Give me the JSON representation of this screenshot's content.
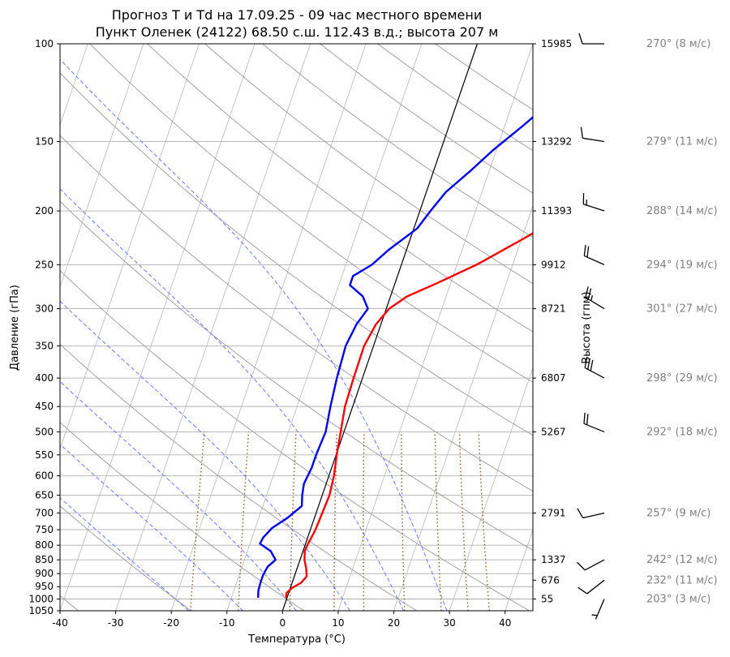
{
  "chart_data": {
    "type": "skew-t",
    "title_line1": "Прогноз T и Td на 17.09.25 - 09 час местного времени",
    "title_line2": "Пункт Оленек (24122) 68.50 с.ш. 112.43 в.д.; высота 207 м",
    "xlabel": "Температура (°C)",
    "ylabel": "Давление (гПа)",
    "ylabel_right": "Высота (гпм)",
    "xlim": [
      -40,
      45
    ],
    "pressure_range": [
      1050,
      100
    ],
    "x_ticks": [
      "-40",
      "-30",
      "-20",
      "-10",
      "0",
      "10",
      "20",
      "30",
      "40"
    ],
    "pressure_ticks": [
      "100",
      "150",
      "200",
      "250",
      "300",
      "350",
      "400",
      "450",
      "500",
      "550",
      "600",
      "650",
      "700",
      "750",
      "800",
      "850",
      "900",
      "950",
      "1000",
      "1050"
    ],
    "heights": [
      {
        "p": 100,
        "label": "15985"
      },
      {
        "p": 150,
        "label": "13292"
      },
      {
        "p": 200,
        "label": "11393"
      },
      {
        "p": 250,
        "label": "9912"
      },
      {
        "p": 300,
        "label": "8721"
      },
      {
        "p": 400,
        "label": "6807"
      },
      {
        "p": 500,
        "label": "5267"
      },
      {
        "p": 700,
        "label": "2791"
      },
      {
        "p": 850,
        "label": "1337"
      },
      {
        "p": 925,
        "label": "676"
      },
      {
        "p": 1000,
        "label": "55"
      }
    ],
    "grid": true,
    "colors": {
      "temperature": "#ff0000",
      "dewpoint": "#0000ee",
      "dry_adiabat": "#999999",
      "moist_adiabat": "#6c7bf2",
      "mixing_ratio": "#8b5a2b",
      "zero_isotherm": "#000000",
      "wind_text": "#808080"
    },
    "series": [
      {
        "kind": "temperature",
        "points": [
          {
            "p": 995,
            "t": -0.2
          },
          {
            "p": 975,
            "t": -0.4
          },
          {
            "p": 955,
            "t": 0.3
          },
          {
            "p": 935,
            "t": 1.6
          },
          {
            "p": 910,
            "t": 2.2
          },
          {
            "p": 880,
            "t": 1.6
          },
          {
            "p": 850,
            "t": 0.8
          },
          {
            "p": 820,
            "t": 0.3
          },
          {
            "p": 800,
            "t": 0.4
          },
          {
            "p": 750,
            "t": 0.9
          },
          {
            "p": 700,
            "t": 1.1
          },
          {
            "p": 650,
            "t": 1.3
          },
          {
            "p": 600,
            "t": 0.9
          },
          {
            "p": 550,
            "t": 0.1
          },
          {
            "p": 500,
            "t": -0.6
          },
          {
            "p": 450,
            "t": -1.4
          },
          {
            "p": 400,
            "t": -1.6
          },
          {
            "p": 350,
            "t": -1.7
          },
          {
            "p": 320,
            "t": -0.9
          },
          {
            "p": 300,
            "t": 0.5
          },
          {
            "p": 285,
            "t": 3.0
          },
          {
            "p": 270,
            "t": 7.5
          },
          {
            "p": 250,
            "t": 13.5
          },
          {
            "p": 230,
            "t": 18.8
          },
          {
            "p": 210,
            "t": 24.4
          },
          {
            "p": 195,
            "t": 28.2
          },
          {
            "p": 180,
            "t": 30.4
          },
          {
            "p": 160,
            "t": 34.7
          },
          {
            "p": 145,
            "t": 39.8
          },
          {
            "p": 130,
            "t": 43.7
          },
          {
            "p": 120,
            "t": 45.0
          }
        ]
      },
      {
        "kind": "dewpoint",
        "points": [
          {
            "p": 995,
            "t": -5.2
          },
          {
            "p": 965,
            "t": -5.6
          },
          {
            "p": 935,
            "t": -5.7
          },
          {
            "p": 905,
            "t": -5.7
          },
          {
            "p": 875,
            "t": -5.4
          },
          {
            "p": 850,
            "t": -4.4
          },
          {
            "p": 820,
            "t": -5.8
          },
          {
            "p": 795,
            "t": -8.2
          },
          {
            "p": 775,
            "t": -8.0
          },
          {
            "p": 745,
            "t": -7.0
          },
          {
            "p": 715,
            "t": -4.9
          },
          {
            "p": 680,
            "t": -3.0
          },
          {
            "p": 650,
            "t": -3.6
          },
          {
            "p": 620,
            "t": -4.0
          },
          {
            "p": 580,
            "t": -3.6
          },
          {
            "p": 550,
            "t": -3.6
          },
          {
            "p": 500,
            "t": -3.3
          },
          {
            "p": 450,
            "t": -4.0
          },
          {
            "p": 400,
            "t": -4.6
          },
          {
            "p": 350,
            "t": -5.0
          },
          {
            "p": 320,
            "t": -4.4
          },
          {
            "p": 300,
            "t": -3.3
          },
          {
            "p": 285,
            "t": -5.0
          },
          {
            "p": 272,
            "t": -8.0
          },
          {
            "p": 262,
            "t": -8.0
          },
          {
            "p": 250,
            "t": -5.3
          },
          {
            "p": 235,
            "t": -3.2
          },
          {
            "p": 215,
            "t": 0.6
          },
          {
            "p": 200,
            "t": 1.9
          },
          {
            "p": 185,
            "t": 3.5
          },
          {
            "p": 170,
            "t": 6.5
          },
          {
            "p": 155,
            "t": 9.5
          },
          {
            "p": 140,
            "t": 13.4
          },
          {
            "p": 125,
            "t": 17.4
          },
          {
            "p": 110,
            "t": 20.6
          },
          {
            "p": 100,
            "t": 22.7
          }
        ]
      }
    ],
    "wind": [
      {
        "p": 100,
        "dir": 270,
        "speed": 8,
        "label": "270° (8 м/с)"
      },
      {
        "p": 150,
        "dir": 279,
        "speed": 11,
        "label": "279° (11 м/с)"
      },
      {
        "p": 200,
        "dir": 288,
        "speed": 14,
        "label": "288° (14 м/с)"
      },
      {
        "p": 250,
        "dir": 294,
        "speed": 19,
        "label": "294° (19 м/с)"
      },
      {
        "p": 300,
        "dir": 301,
        "speed": 27,
        "label": "301° (27 м/с)"
      },
      {
        "p": 400,
        "dir": 298,
        "speed": 29,
        "label": "298° (29 м/с)"
      },
      {
        "p": 500,
        "dir": 292,
        "speed": 18,
        "label": "292° (18 м/с)"
      },
      {
        "p": 700,
        "dir": 257,
        "speed": 9,
        "label": "257° (9 м/с)"
      },
      {
        "p": 850,
        "dir": 242,
        "speed": 12,
        "label": "242° (12 м/с)"
      },
      {
        "p": 925,
        "dir": 232,
        "speed": 11,
        "label": "232° (11 м/с)"
      },
      {
        "p": 1000,
        "dir": 203,
        "speed": 3,
        "label": "203° (3 м/с)"
      }
    ]
  }
}
